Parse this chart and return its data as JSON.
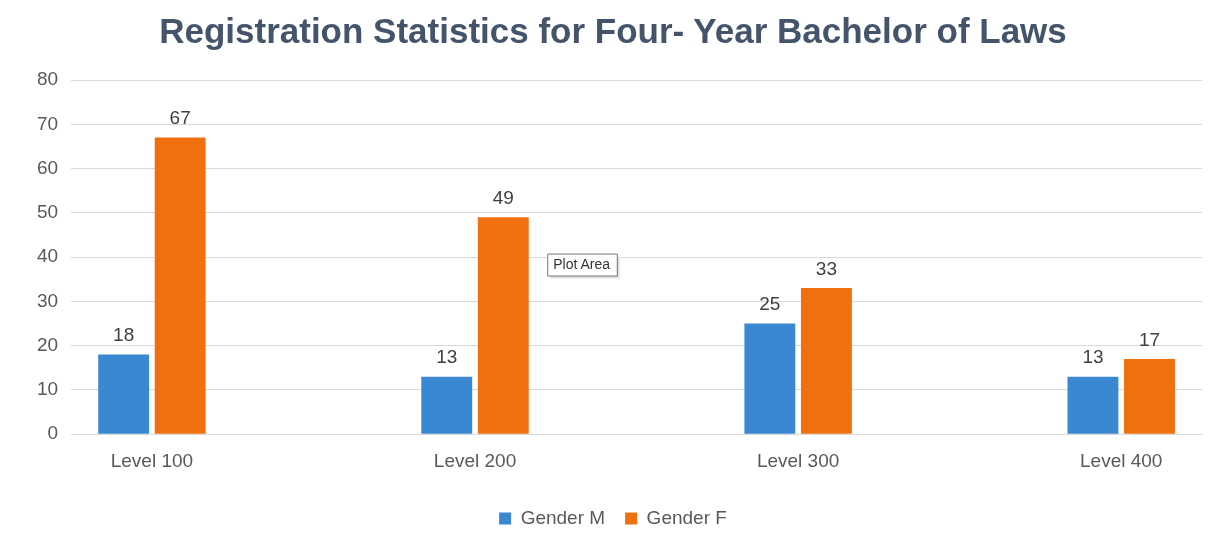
{
  "chart_data": {
    "type": "bar",
    "title": "Registration Statistics for Four- Year Bachelor of Laws",
    "categories": [
      "Level 100",
      "Level 200",
      "Level 300",
      "Level 400"
    ],
    "series": [
      {
        "name": "Gender M",
        "color": "#3a87d2",
        "values": [
          18,
          13,
          25,
          13
        ]
      },
      {
        "name": "Gender F",
        "color": "#f0700e",
        "values": [
          67,
          49,
          33,
          17
        ]
      }
    ],
    "ylim": [
      0,
      80
    ],
    "yticks": [
      0,
      10,
      20,
      30,
      40,
      50,
      60,
      70,
      80
    ],
    "grid": "y",
    "legend": "bottom",
    "data_labels": true,
    "annotations": [
      "Plot Area"
    ]
  }
}
